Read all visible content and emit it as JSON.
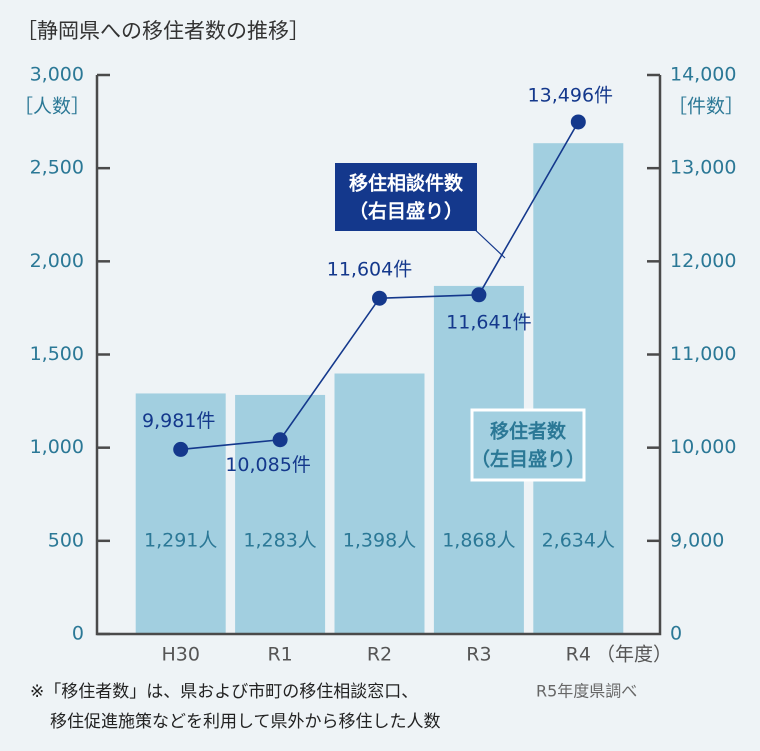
{
  "chart_data": {
    "type": "combo",
    "title": "［静岡県への移住者数の推移］",
    "y_label": "［人数］",
    "y2_label": "［件数］",
    "x_unit": "（年度）",
    "categories": [
      "H30",
      "R1",
      "R2",
      "R3",
      "R4"
    ],
    "ylim": [
      0,
      3000
    ],
    "yticks": [
      0,
      500,
      {
        "value": 1000,
        "label": "1,000"
      },
      {
        "value": 1500,
        "label": "1,500"
      },
      {
        "value": 2000,
        "label": "2,000"
      },
      {
        "value": 2500,
        "label": "2,500"
      },
      {
        "value": 3000,
        "label": "3,000"
      }
    ],
    "y2lim": [
      8000,
      14000
    ],
    "y2_origin_label": "0",
    "y2ticks": [
      {
        "value": 9000,
        "label": "9,000"
      },
      {
        "value": 10000,
        "label": "10,000"
      },
      {
        "value": 11000,
        "label": "11,000"
      },
      {
        "value": 12000,
        "label": "12,000"
      },
      {
        "value": 13000,
        "label": "13,000"
      },
      {
        "value": 14000,
        "label": "14,000"
      }
    ],
    "series": [
      {
        "name": "移住者数",
        "scale_note": "（左目盛り）",
        "type": "bar",
        "color": "#a2cfe0",
        "values": [
          1291,
          1283,
          1398,
          1868,
          2634
        ],
        "value_labels": [
          "1,291人",
          "1,283人",
          "1,398人",
          "1,868人",
          "2,634人"
        ]
      },
      {
        "name": "移住相談件数",
        "scale_note": "（右目盛り）",
        "type": "line",
        "axis": "y2",
        "color": "#14388c",
        "values": [
          9981,
          10085,
          11604,
          11641,
          13496
        ],
        "value_labels": [
          "9,981件",
          "10,085件",
          "11,604件",
          "11,641件",
          "13,496件"
        ]
      }
    ],
    "notes": [
      "※「移住者数」は、県および市町の移住相談窓口、",
      "移住促進施策などを利用して県外から移住した人数"
    ],
    "source": "R5年度県調べ"
  }
}
